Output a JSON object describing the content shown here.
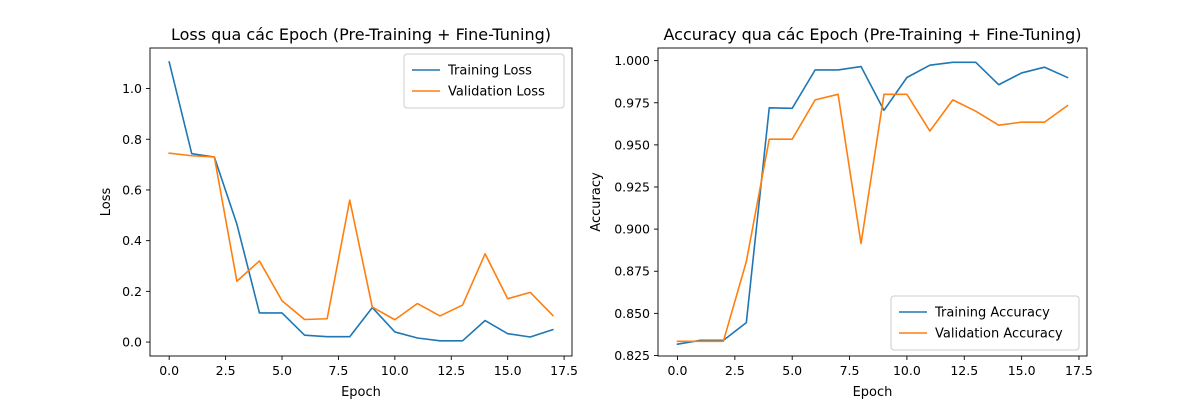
{
  "chart_data": [
    {
      "type": "line",
      "title": "Loss qua các Epoch (Pre-Training + Fine-Tuning)",
      "xlabel": "Epoch",
      "ylabel": "Loss",
      "xlim": [
        -0.85,
        17.85
      ],
      "ylim": [
        -0.055,
        1.16
      ],
      "xticks": [
        0.0,
        2.5,
        5.0,
        7.5,
        10.0,
        12.5,
        15.0,
        17.5
      ],
      "xtick_labels": [
        "0.0",
        "2.5",
        "5.0",
        "7.5",
        "10.0",
        "12.5",
        "15.0",
        "17.5"
      ],
      "yticks": [
        0.0,
        0.2,
        0.4,
        0.6,
        0.8,
        1.0
      ],
      "ytick_labels": [
        "0.0",
        "0.2",
        "0.4",
        "0.6",
        "0.8",
        "1.0"
      ],
      "grid": false,
      "legend_position": "upper-right",
      "x": [
        0,
        1,
        2,
        3,
        4,
        5,
        6,
        7,
        8,
        9,
        10,
        11,
        12,
        13,
        14,
        15,
        16,
        17
      ],
      "series": [
        {
          "name": "Training Loss",
          "color": "#1f77b4",
          "values": [
            1.105,
            0.743,
            0.73,
            0.465,
            0.115,
            0.115,
            0.027,
            0.021,
            0.021,
            0.136,
            0.04,
            0.016,
            0.005,
            0.005,
            0.085,
            0.033,
            0.02,
            0.049
          ]
        },
        {
          "name": "Validation Loss",
          "color": "#ff7f0e",
          "values": [
            0.745,
            0.735,
            0.73,
            0.24,
            0.32,
            0.163,
            0.089,
            0.092,
            0.56,
            0.138,
            0.088,
            0.152,
            0.103,
            0.146,
            0.348,
            0.171,
            0.196,
            0.105
          ]
        }
      ]
    },
    {
      "type": "line",
      "title": "Accuracy qua các Epoch (Pre-Training + Fine-Tuning)",
      "xlabel": "Epoch",
      "ylabel": "Accuracy",
      "xlim": [
        -0.85,
        17.85
      ],
      "ylim": [
        0.8247,
        1.0075
      ],
      "xticks": [
        0.0,
        2.5,
        5.0,
        7.5,
        10.0,
        12.5,
        15.0,
        17.5
      ],
      "xtick_labels": [
        "0.0",
        "2.5",
        "5.0",
        "7.5",
        "10.0",
        "12.5",
        "15.0",
        "17.5"
      ],
      "yticks": [
        0.825,
        0.85,
        0.875,
        0.9,
        0.925,
        0.95,
        0.975,
        1.0
      ],
      "ytick_labels": [
        "0.825",
        "0.850",
        "0.875",
        "0.900",
        "0.925",
        "0.950",
        "0.975",
        "1.000"
      ],
      "grid": false,
      "legend_position": "lower-right",
      "x": [
        0,
        1,
        2,
        3,
        4,
        5,
        6,
        7,
        8,
        9,
        10,
        11,
        12,
        13,
        14,
        15,
        16,
        17
      ],
      "series": [
        {
          "name": "Training Accuracy",
          "color": "#1f77b4",
          "values": [
            0.8317,
            0.834,
            0.834,
            0.8445,
            0.972,
            0.9717,
            0.9945,
            0.9945,
            0.9965,
            0.9705,
            0.99,
            0.9973,
            0.999,
            0.999,
            0.9857,
            0.9927,
            0.9961,
            0.99
          ]
        },
        {
          "name": "Validation Accuracy",
          "color": "#ff7f0e",
          "values": [
            0.8334,
            0.8334,
            0.8334,
            0.8807,
            0.9534,
            0.9534,
            0.9767,
            0.98,
            0.8915,
            0.98,
            0.98,
            0.9582,
            0.9767,
            0.97,
            0.9617,
            0.9635,
            0.9635,
            0.9733
          ]
        }
      ]
    }
  ]
}
